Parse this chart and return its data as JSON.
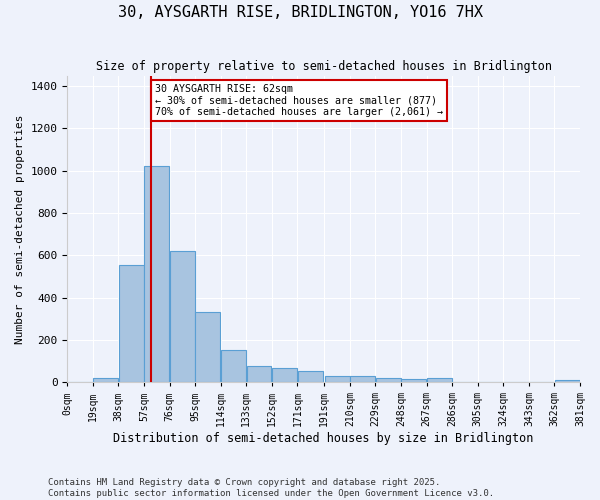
{
  "title": "30, AYSGARTH RISE, BRIDLINGTON, YO16 7HX",
  "subtitle": "Size of property relative to semi-detached houses in Bridlington",
  "xlabel": "Distribution of semi-detached houses by size in Bridlington",
  "ylabel": "Number of semi-detached properties",
  "bar_color": "#a8c4e0",
  "bar_edge_color": "#5a9fd4",
  "background_color": "#eef2fb",
  "grid_color": "#ffffff",
  "annotation_text": "30 AYSGARTH RISE: 62sqm\n← 30% of semi-detached houses are smaller (877)\n70% of semi-detached houses are larger (2,061) →",
  "vline_x": 62,
  "vline_color": "#cc0000",
  "bin_edges": [
    0,
    19,
    38,
    57,
    76,
    95,
    114,
    133,
    152,
    171,
    191,
    210,
    229,
    248,
    267,
    286,
    305,
    324,
    343,
    362,
    381
  ],
  "bar_heights": [
    0,
    20,
    555,
    1020,
    620,
    330,
    150,
    75,
    65,
    55,
    30,
    30,
    20,
    13,
    20,
    0,
    0,
    0,
    0,
    10
  ],
  "ylim": [
    0,
    1450
  ],
  "yticks": [
    0,
    200,
    400,
    600,
    800,
    1000,
    1200,
    1400
  ],
  "footer": "Contains HM Land Registry data © Crown copyright and database right 2025.\nContains public sector information licensed under the Open Government Licence v3.0.",
  "tick_labels": [
    "0sqm",
    "19sqm",
    "38sqm",
    "57sqm",
    "76sqm",
    "95sqm",
    "114sqm",
    "133sqm",
    "152sqm",
    "171sqm",
    "191sqm",
    "210sqm",
    "229sqm",
    "248sqm",
    "267sqm",
    "286sqm",
    "305sqm",
    "324sqm",
    "343sqm",
    "362sqm",
    "381sqm"
  ]
}
